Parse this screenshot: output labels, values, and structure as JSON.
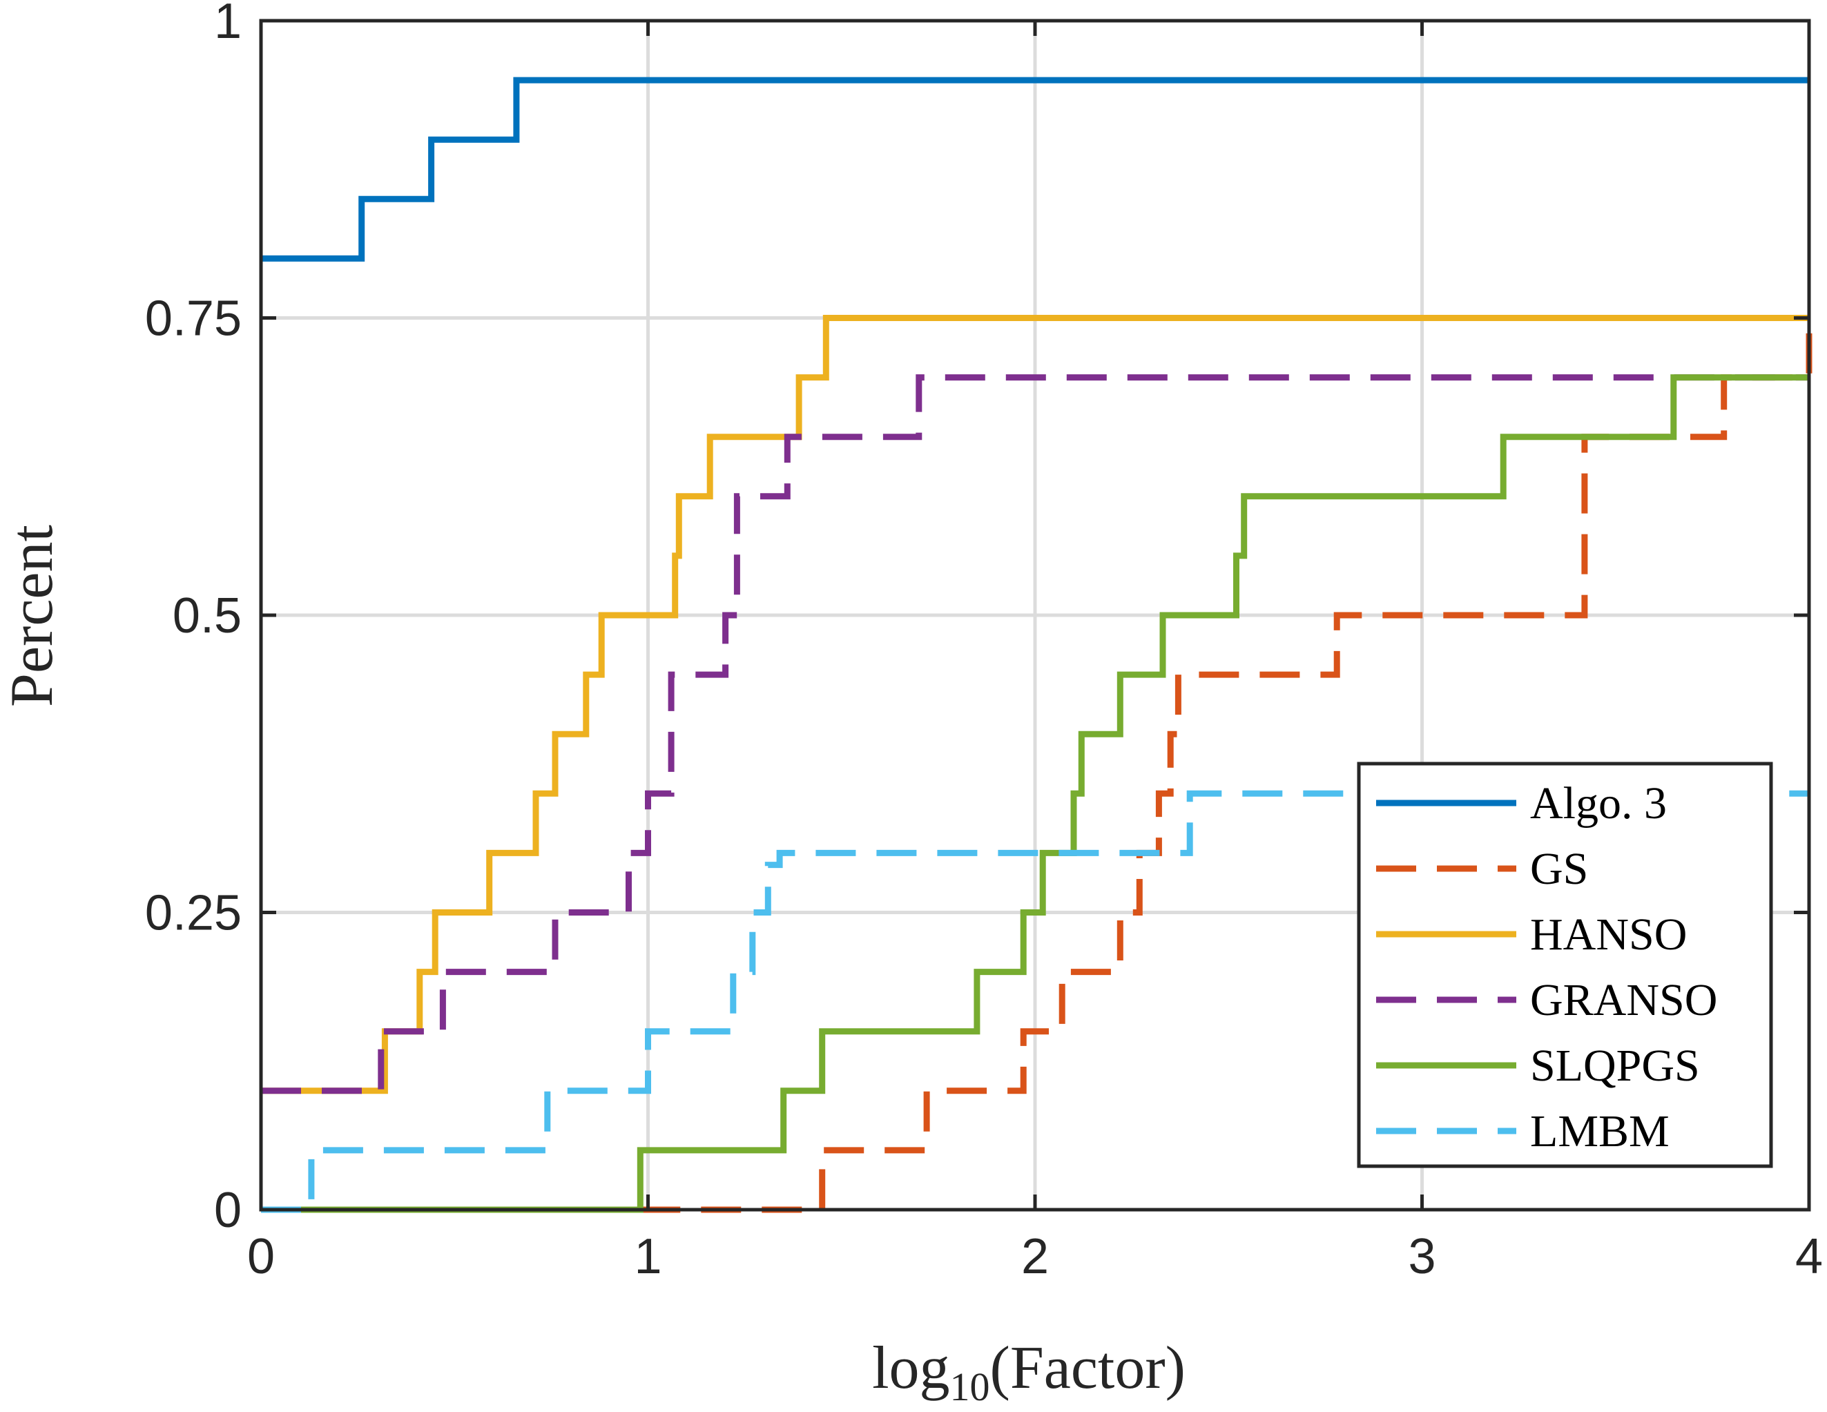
{
  "chart_data": {
    "type": "line",
    "subtype": "step performance profile",
    "title": "",
    "xlabel": "log10(Factor)",
    "xlabel_base": "log",
    "xlabel_sub": "10",
    "xlabel_rest": "(Factor)",
    "ylabel": "Percent",
    "xlim": [
      0,
      4
    ],
    "ylim": [
      0,
      1
    ],
    "xticks": [
      0,
      1,
      2,
      3,
      4
    ],
    "xtick_labels": [
      "0",
      "1",
      "2",
      "3",
      "4"
    ],
    "yticks": [
      0,
      0.25,
      0.5,
      0.75,
      1
    ],
    "ytick_labels": [
      "0",
      "0.25",
      "0.5",
      "0.75",
      "1"
    ],
    "grid": true,
    "legend_position": "bottom-right",
    "series": [
      {
        "name": "Algo. 3",
        "color": "#0072BD",
        "dash": "solid",
        "x": [
          0,
          0.26,
          0.44,
          0.66,
          4
        ],
        "y": [
          0.8,
          0.85,
          0.9,
          0.95,
          0.95
        ]
      },
      {
        "name": "GS",
        "color": "#D95319",
        "dash": "dashed",
        "x": [
          0.98,
          1.45,
          1.72,
          1.97,
          2.07,
          2.22,
          2.27,
          2.32,
          2.35,
          2.37,
          2.78,
          3.42,
          3.78,
          4
        ],
        "y": [
          0,
          0.05,
          0.1,
          0.15,
          0.2,
          0.25,
          0.3,
          0.35,
          0.4,
          0.45,
          0.5,
          0.65,
          0.7,
          0.75
        ]
      },
      {
        "name": "HANSO",
        "color": "#EDB120",
        "dash": "solid",
        "x": [
          0,
          0.32,
          0.41,
          0.45,
          0.59,
          0.71,
          0.76,
          0.84,
          0.88,
          1.07,
          1.08,
          1.16,
          1.39,
          1.46,
          4
        ],
        "y": [
          0.1,
          0.15,
          0.2,
          0.25,
          0.3,
          0.35,
          0.4,
          0.45,
          0.5,
          0.55,
          0.6,
          0.65,
          0.7,
          0.75,
          0.75
        ]
      },
      {
        "name": "GRANSO",
        "color": "#7E2F8E",
        "dash": "dashed",
        "x": [
          0,
          0.31,
          0.47,
          0.76,
          0.95,
          1.0,
          1.06,
          1.2,
          1.23,
          1.36,
          1.7,
          4
        ],
        "y": [
          0.1,
          0.15,
          0.2,
          0.25,
          0.3,
          0.35,
          0.45,
          0.5,
          0.6,
          0.65,
          0.7,
          0.7
        ]
      },
      {
        "name": "SLQPGS",
        "color": "#77AC30",
        "dash": "solid",
        "x": [
          0,
          0.98,
          1.35,
          1.45,
          1.85,
          1.97,
          2.02,
          2.1,
          2.12,
          2.22,
          2.33,
          2.52,
          2.54,
          3.21,
          3.65,
          4
        ],
        "y": [
          0,
          0.05,
          0.1,
          0.15,
          0.2,
          0.25,
          0.3,
          0.35,
          0.4,
          0.45,
          0.5,
          0.55,
          0.6,
          0.65,
          0.7,
          0.7
        ]
      },
      {
        "name": "LMBM",
        "color": "#4DBEEE",
        "dash": "dashed",
        "x": [
          0,
          0.13,
          0.74,
          1.0,
          1.22,
          1.27,
          1.31,
          1.34,
          2.4,
          4
        ],
        "y": [
          0,
          0.05,
          0.1,
          0.15,
          0.2,
          0.25,
          0.29,
          0.3,
          0.35,
          0.35
        ]
      }
    ]
  }
}
